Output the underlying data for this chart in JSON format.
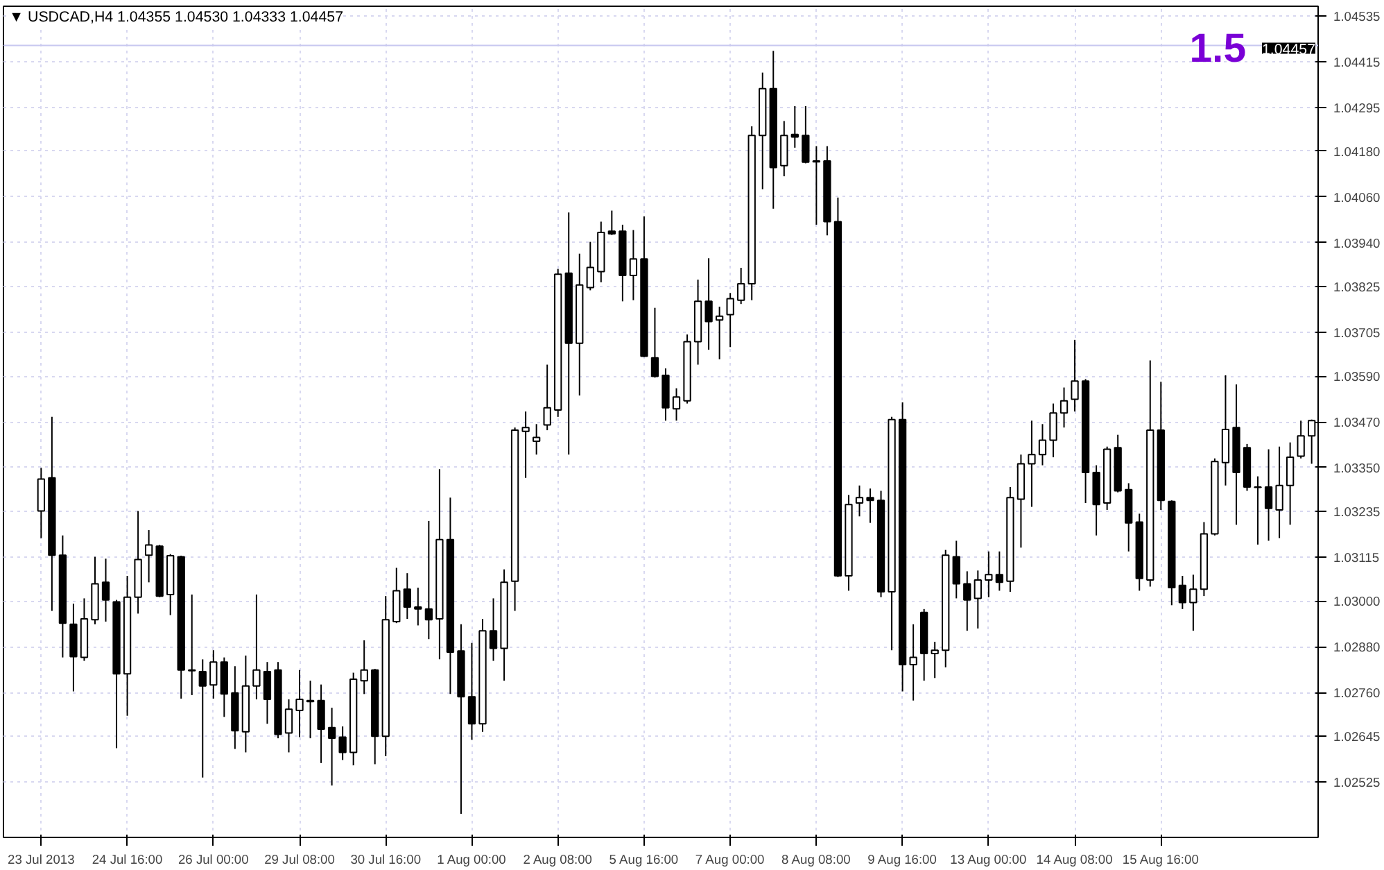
{
  "chart_data": {
    "type": "candlestick",
    "title": "▼ USDCAD,H4 1.04355 1.04530 1.04333 1.04457",
    "annotations": [
      "1.5"
    ],
    "color": "#000000",
    "grid": true,
    "categories": [
      "23 Jul 2013",
      null,
      null,
      null,
      null,
      null,
      null,
      null,
      "24 Jul 16:00",
      null,
      null,
      null,
      null,
      null,
      null,
      null,
      "26 Jul 00:00",
      null,
      null,
      null,
      null,
      null,
      null,
      null,
      "29 Jul 08:00",
      null,
      null,
      null,
      null,
      null,
      null,
      null,
      "30 Jul 16:00",
      null,
      null,
      null,
      null,
      null,
      null,
      null,
      "1 Aug 00:00",
      null,
      null,
      null,
      null,
      null,
      null,
      null,
      "2 Aug 08:00",
      null,
      null,
      null,
      null,
      null,
      null,
      null,
      "5 Aug 16:00",
      null,
      null,
      null,
      null,
      null,
      null,
      null,
      "7 Aug 00:00",
      null,
      null,
      null,
      null,
      null,
      null,
      null,
      "8 Aug 08:00",
      null,
      null,
      null,
      null,
      null,
      null,
      null,
      "9 Aug 16:00",
      null,
      null,
      null,
      null,
      null,
      null,
      null,
      "13 Aug 00:00",
      null,
      null,
      null,
      null,
      null,
      null,
      null,
      "14 Aug 08:00",
      null,
      null,
      null,
      null,
      null,
      null,
      null,
      "15 Aug 16:00",
      null,
      null,
      null,
      null,
      null,
      null,
      null,
      null,
      null,
      null,
      null,
      null,
      null,
      null
    ],
    "ylim": [
      1.0238,
      1.0456
    ],
    "yticks": [
      1.04535,
      1.04415,
      1.04295,
      {
        "value": 1.0418,
        "label": "1.04180"
      },
      {
        "value": 1.0406,
        "label": "1.04060"
      },
      {
        "value": 1.0394,
        "label": "1.03940"
      },
      1.03825,
      1.03705,
      {
        "value": 1.0359,
        "label": "1.03590"
      },
      {
        "value": 1.0347,
        "label": "1.03470"
      },
      {
        "value": 1.0335,
        "label": "1.03350"
      },
      1.03235,
      1.03115,
      {
        "value": 1.03,
        "label": "1.03000"
      },
      {
        "value": 1.0288,
        "label": "1.02880"
      },
      {
        "value": 1.0276,
        "label": "1.02760"
      },
      1.02645,
      1.02525
    ],
    "ref_lines": [
      {
        "axis": "y",
        "value": 1.04457,
        "label": "1.04457",
        "color": "#c8c8f0"
      }
    ],
    "ohlc": [
      [
        1.03236,
        1.03349,
        1.03165,
        1.0332
      ],
      [
        1.03323,
        1.03483,
        1.02974,
        1.0312
      ],
      [
        1.0312,
        1.03172,
        1.02852,
        1.02942
      ],
      [
        1.02939,
        1.02993,
        1.02763,
        1.02854
      ],
      [
        1.02852,
        1.03007,
        1.02843,
        1.02953
      ],
      [
        1.02951,
        1.03116,
        1.02939,
        1.03045
      ],
      [
        1.03049,
        1.03111,
        1.02946,
        1.03003
      ],
      [
        1.02998,
        1.03003,
        1.02614,
        1.02809
      ],
      [
        1.02809,
        1.03066,
        1.02699,
        1.0301
      ],
      [
        1.0301,
        1.03236,
        1.02967,
        1.03109
      ],
      [
        1.0312,
        1.03186,
        1.03049,
        1.03147
      ],
      [
        1.03144,
        1.03147,
        1.0301,
        1.03013
      ],
      [
        1.03017,
        1.03123,
        1.02963,
        1.03119
      ],
      [
        1.03116,
        1.03119,
        1.02744,
        1.02819
      ],
      [
        1.02819,
        1.03017,
        1.02753,
        1.02817
      ],
      [
        1.02815,
        1.02847,
        1.02537,
        1.02777
      ],
      [
        1.0278,
        1.02871,
        1.02744,
        1.0284
      ],
      [
        1.0284,
        1.02852,
        1.02696,
        1.02756
      ],
      [
        1.02759,
        1.02829,
        1.02612,
        1.0266
      ],
      [
        1.02657,
        1.02857,
        1.02603,
        1.02777
      ],
      [
        1.02777,
        1.03017,
        1.02742,
        1.02819
      ],
      [
        1.02815,
        1.0284,
        1.02678,
        1.02742
      ],
      [
        1.02819,
        1.0284,
        1.0264,
        1.0265
      ],
      [
        1.02654,
        1.02742,
        1.02603,
        1.02716
      ],
      [
        1.02713,
        1.02819,
        1.02643,
        1.02742
      ],
      [
        1.02739,
        1.02791,
        1.0264,
        1.02736
      ],
      [
        1.02739,
        1.02781,
        1.02575,
        1.02664
      ],
      [
        1.02668,
        1.0272,
        1.02516,
        1.0264
      ],
      [
        1.02643,
        1.02671,
        1.02583,
        1.02603
      ],
      [
        1.02603,
        1.02812,
        1.02569,
        1.02795
      ],
      [
        1.02791,
        1.02897,
        1.02756,
        1.02819
      ],
      [
        1.02819,
        1.02822,
        1.02572,
        1.02645
      ],
      [
        1.02645,
        1.03013,
        1.02593,
        1.02951
      ],
      [
        1.02946,
        1.03087,
        1.02942,
        1.03027
      ],
      [
        1.03031,
        1.03073,
        1.02953,
        1.02984
      ],
      [
        1.02984,
        1.03035,
        1.02936,
        1.02979
      ],
      [
        1.02979,
        1.0321,
        1.029,
        1.02951
      ],
      [
        1.02953,
        1.03346,
        1.02847,
        1.03161
      ],
      [
        1.03161,
        1.03271,
        1.02756,
        1.02866
      ],
      [
        1.02869,
        1.02939,
        1.02442,
        1.02749
      ],
      [
        1.02749,
        1.0289,
        1.02636,
        1.02678
      ],
      [
        1.02678,
        1.02953,
        1.02657,
        1.02922
      ],
      [
        1.02922,
        1.03007,
        1.02843,
        1.02876
      ],
      [
        1.02876,
        1.03083,
        1.02791,
        1.03049
      ],
      [
        1.03052,
        1.03455,
        1.02974,
        1.03448
      ],
      [
        1.03445,
        1.03497,
        1.03323,
        1.03455
      ],
      [
        1.03419,
        1.03464,
        1.03384,
        1.03429
      ],
      [
        1.03462,
        1.0362,
        1.03448,
        1.03507
      ],
      [
        1.03501,
        1.03871,
        1.03483,
        1.03857
      ],
      [
        1.0386,
        1.04019,
        1.03384,
        1.03676
      ],
      [
        1.03676,
        1.03911,
        1.03539,
        1.03829
      ],
      [
        1.03822,
        1.03942,
        1.03815,
        1.03875
      ],
      [
        1.03864,
        1.03995,
        1.03836,
        1.03967
      ],
      [
        1.0397,
        1.04024,
        1.0396,
        1.03963
      ],
      [
        1.0397,
        1.03987,
        1.03786,
        1.03854
      ],
      [
        1.03854,
        1.03973,
        1.03789,
        1.03897
      ],
      [
        1.03897,
        1.04009,
        1.0364,
        1.03642
      ],
      [
        1.03638,
        1.03769,
        1.03586,
        1.03589
      ],
      [
        1.03592,
        1.0361,
        1.03473,
        1.03507
      ],
      [
        1.03504,
        1.03558,
        1.03473,
        1.03535
      ],
      [
        1.03525,
        1.03699,
        1.03518,
        1.0368
      ],
      [
        1.0368,
        1.03843,
        1.0362,
        1.03786
      ],
      [
        1.03786,
        1.03899,
        1.03659,
        1.03733
      ],
      [
        1.03737,
        1.03772,
        1.03634,
        1.03747
      ],
      [
        1.03751,
        1.03808,
        1.03666,
        1.03793
      ],
      [
        1.03789,
        1.03874,
        1.03779,
        1.03832
      ],
      [
        1.03832,
        1.04245,
        1.03789,
        1.04221
      ],
      [
        1.04221,
        1.04386,
        1.0408,
        1.04344
      ],
      [
        1.04344,
        1.04443,
        1.04029,
        1.04137
      ],
      [
        1.04142,
        1.04259,
        1.04114,
        1.04221
      ],
      [
        1.04224,
        1.04298,
        1.04189,
        1.04217
      ],
      [
        1.04221,
        1.04298,
        1.04148,
        1.04151
      ],
      [
        1.04154,
        1.04193,
        1.03987,
        1.04152
      ],
      [
        1.04154,
        1.04193,
        1.03959,
        1.03995
      ],
      [
        1.03995,
        1.04058,
        1.03063,
        1.03066
      ],
      [
        1.03066,
        1.03278,
        1.03027,
        1.03253
      ],
      [
        1.03257,
        1.03303,
        1.03222,
        1.03271
      ],
      [
        1.03271,
        1.03295,
        1.03205,
        1.03264
      ],
      [
        1.03264,
        1.03289,
        1.0301,
        1.03024
      ],
      [
        1.03024,
        1.03483,
        1.02871,
        1.03476
      ],
      [
        1.03476,
        1.03521,
        1.02763,
        1.02833
      ],
      [
        1.02833,
        1.02939,
        1.02739,
        1.02852
      ],
      [
        1.0297,
        1.02979,
        1.02791,
        1.02862
      ],
      [
        1.02862,
        1.02893,
        1.02798,
        1.02871
      ],
      [
        1.02871,
        1.03134,
        1.02826,
        1.0312
      ],
      [
        1.03116,
        1.03158,
        1.03007,
        1.03045
      ],
      [
        1.03045,
        1.03078,
        1.02922,
        1.03003
      ],
      [
        1.03007,
        1.0308,
        1.02928,
        1.03055
      ],
      [
        1.03055,
        1.0313,
        1.0301,
        1.03069
      ],
      [
        1.03069,
        1.0313,
        1.03027,
        1.03049
      ],
      [
        1.03052,
        1.03299,
        1.03024,
        1.03271
      ],
      [
        1.03267,
        1.03384,
        1.0314,
        1.0336
      ],
      [
        1.0336,
        1.03473,
        1.03247,
        1.03384
      ],
      [
        1.03384,
        1.03464,
        1.03356,
        1.03422
      ],
      [
        1.03422,
        1.03518,
        1.03377,
        1.03493
      ],
      [
        1.03493,
        1.0356,
        1.03455,
        1.03525
      ],
      [
        1.03529,
        1.03685,
        1.03497,
        1.03577
      ],
      [
        1.03577,
        1.03582,
        1.03257,
        1.03337
      ],
      [
        1.03337,
        1.03356,
        1.03172,
        1.03253
      ],
      [
        1.03257,
        1.03405,
        1.03239,
        1.03398
      ],
      [
        1.03402,
        1.03436,
        1.03285,
        1.03289
      ],
      [
        1.03292,
        1.03309,
        1.0313,
        1.03205
      ],
      [
        1.03207,
        1.03229,
        1.03027,
        1.03059
      ],
      [
        1.03055,
        1.03631,
        1.03038,
        1.03448
      ],
      [
        1.03448,
        1.03575,
        1.03239,
        1.03264
      ],
      [
        1.03261,
        1.03264,
        1.02989,
        1.03035
      ],
      [
        1.03041,
        1.03066,
        1.02979,
        1.02996
      ],
      [
        1.02996,
        1.03069,
        1.02922,
        1.03031
      ],
      [
        1.03031,
        1.03207,
        1.03013,
        1.03176
      ],
      [
        1.03176,
        1.03374,
        1.03172,
        1.03366
      ],
      [
        1.03363,
        1.03592,
        1.03303,
        1.0345
      ],
      [
        1.03455,
        1.03568,
        1.032,
        1.03337
      ],
      [
        1.03402,
        1.03412,
        1.03289,
        1.03299
      ],
      [
        1.03299,
        1.03327,
        1.03148,
        1.03298
      ],
      [
        1.03299,
        1.03398,
        1.03158,
        1.03243
      ],
      [
        1.03239,
        1.03405,
        1.03165,
        1.03303
      ],
      [
        1.03303,
        1.03416,
        1.032,
        1.03377
      ],
      [
        1.0338,
        1.03473,
        1.03374,
        1.03433
      ],
      [
        1.03433,
        1.03476,
        1.0336,
        1.03473
      ]
    ]
  }
}
